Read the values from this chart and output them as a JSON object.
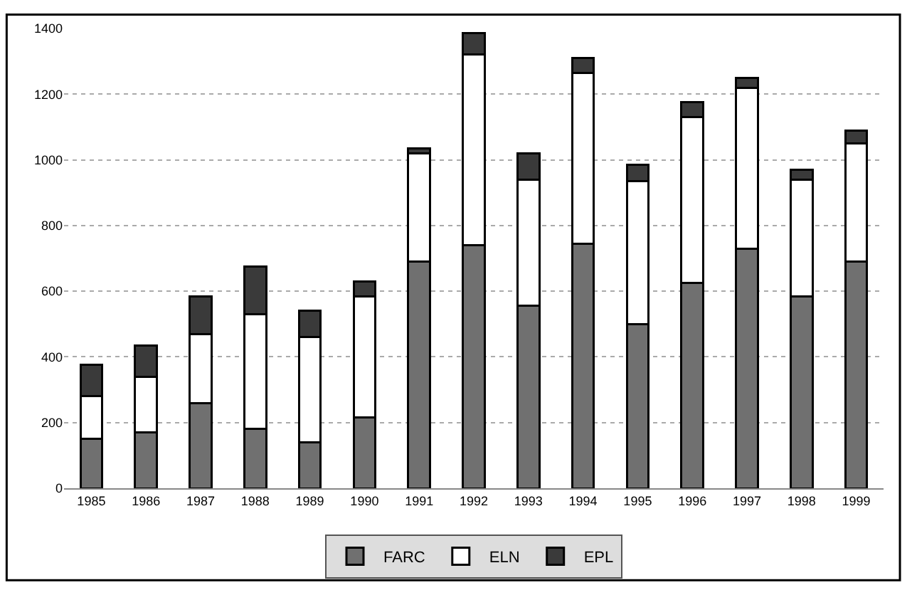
{
  "chart_data": {
    "type": "bar",
    "stacked": true,
    "categories": [
      "1985",
      "1986",
      "1987",
      "1988",
      "1989",
      "1990",
      "1991",
      "1992",
      "1993",
      "1994",
      "1995",
      "1996",
      "1997",
      "1998",
      "1999"
    ],
    "series": [
      {
        "name": "FARC",
        "color": "#707070",
        "values": [
          150,
          170,
          260,
          180,
          140,
          215,
          690,
          740,
          555,
          745,
          500,
          625,
          730,
          585,
          690
        ]
      },
      {
        "name": "ELN",
        "color": "#ffffff",
        "values": [
          130,
          170,
          210,
          350,
          320,
          370,
          330,
          580,
          385,
          520,
          435,
          505,
          490,
          355,
          360
        ]
      },
      {
        "name": "EPL",
        "color": "#3a3a3a",
        "values": [
          95,
          95,
          115,
          145,
          80,
          45,
          15,
          65,
          80,
          45,
          50,
          45,
          30,
          30,
          40
        ]
      }
    ],
    "ylim": [
      0,
      1400
    ],
    "yticks": [
      0,
      200,
      400,
      600,
      800,
      1000,
      1200,
      1400
    ],
    "grid": "y",
    "legend": "bottom"
  }
}
